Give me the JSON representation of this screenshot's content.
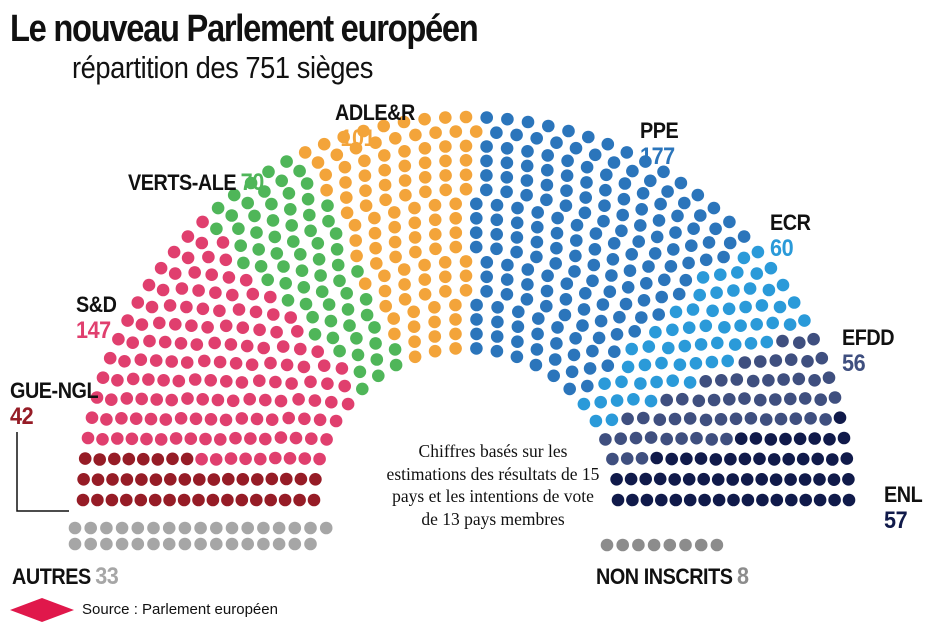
{
  "title": "Le nouveau Parlement européen",
  "subtitle": "répartition des 751 sièges",
  "note": "Chiffres basés sur les estimations des résultats de 15 pays et les intentions de vote de 13 pays membres",
  "source": "Source : Parlement européen",
  "colors": {
    "brand_diamond": "#e0184b"
  },
  "chart_data": {
    "type": "hemicycle",
    "total_seats": 751,
    "groups": [
      {
        "name": "GUE-NGL",
        "seats": 42,
        "color": "#961c26"
      },
      {
        "name": "S&D",
        "seats": 147,
        "color": "#e03f6e"
      },
      {
        "name": "VERTS-ALE",
        "seats": 70,
        "color": "#4fb659"
      },
      {
        "name": "ADLE&R",
        "seats": 101,
        "color": "#f3a43a"
      },
      {
        "name": "PPE",
        "seats": 177,
        "color": "#2b75bb"
      },
      {
        "name": "ECR",
        "seats": 60,
        "color": "#2a9ad9"
      },
      {
        "name": "EFDD",
        "seats": 56,
        "color": "#3f4f7f"
      },
      {
        "name": "ENL",
        "seats": 57,
        "color": "#101a4a"
      },
      {
        "name": "AUTRES",
        "seats": 33,
        "color": "#a6a6a6"
      },
      {
        "name": "NON INSCRITS",
        "seats": 8,
        "color": "#8c8c8c"
      }
    ]
  },
  "labels": {
    "gue": {
      "name": "GUE-NGL",
      "count": "42"
    },
    "sd": {
      "name": "S&D",
      "count": "147"
    },
    "verts": {
      "name": "VERTS-ALE",
      "count": "70"
    },
    "adle": {
      "name": "ADLE&R",
      "count": "101"
    },
    "ppe": {
      "name": "PPE",
      "count": "177"
    },
    "ecr": {
      "name": "ECR",
      "count": "60"
    },
    "efdd": {
      "name": "EFDD",
      "count": "56"
    },
    "enl": {
      "name": "ENL",
      "count": "57"
    },
    "autres": {
      "name": "AUTRES",
      "count": "33"
    },
    "ni": {
      "name": "NON INSCRITS",
      "count": "8"
    }
  }
}
